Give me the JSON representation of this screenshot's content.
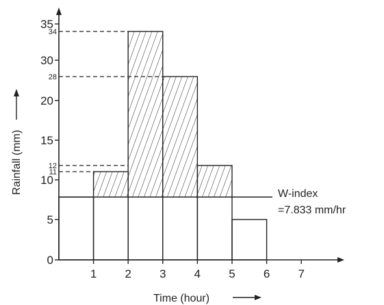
{
  "chart_data": {
    "type": "bar",
    "x_label": "Time (hour)",
    "y_label": "Rainfall (mm)",
    "x_ticks": [
      "1",
      "2",
      "3",
      "4",
      "5",
      "6",
      "7"
    ],
    "y_ticks": [
      "0",
      "5",
      "10",
      "15",
      "20",
      "30",
      "35"
    ],
    "marked_values": [
      "34",
      "28",
      "12",
      "11"
    ],
    "bars": [
      {
        "from": 0,
        "to": 1,
        "value": 7.833
      },
      {
        "from": 1,
        "to": 2,
        "value": 11
      },
      {
        "from": 2,
        "to": 3,
        "value": 34
      },
      {
        "from": 3,
        "to": 4,
        "value": 28
      },
      {
        "from": 4,
        "to": 5,
        "value": 12
      },
      {
        "from": 5,
        "to": 6,
        "value": 5
      }
    ],
    "w_index": {
      "value": 7.833,
      "label_line1": "W-index",
      "label_line2": "=7.833 mm/hr"
    },
    "x_range": [
      0,
      8
    ],
    "grid": false,
    "hatch": "diagonal"
  }
}
